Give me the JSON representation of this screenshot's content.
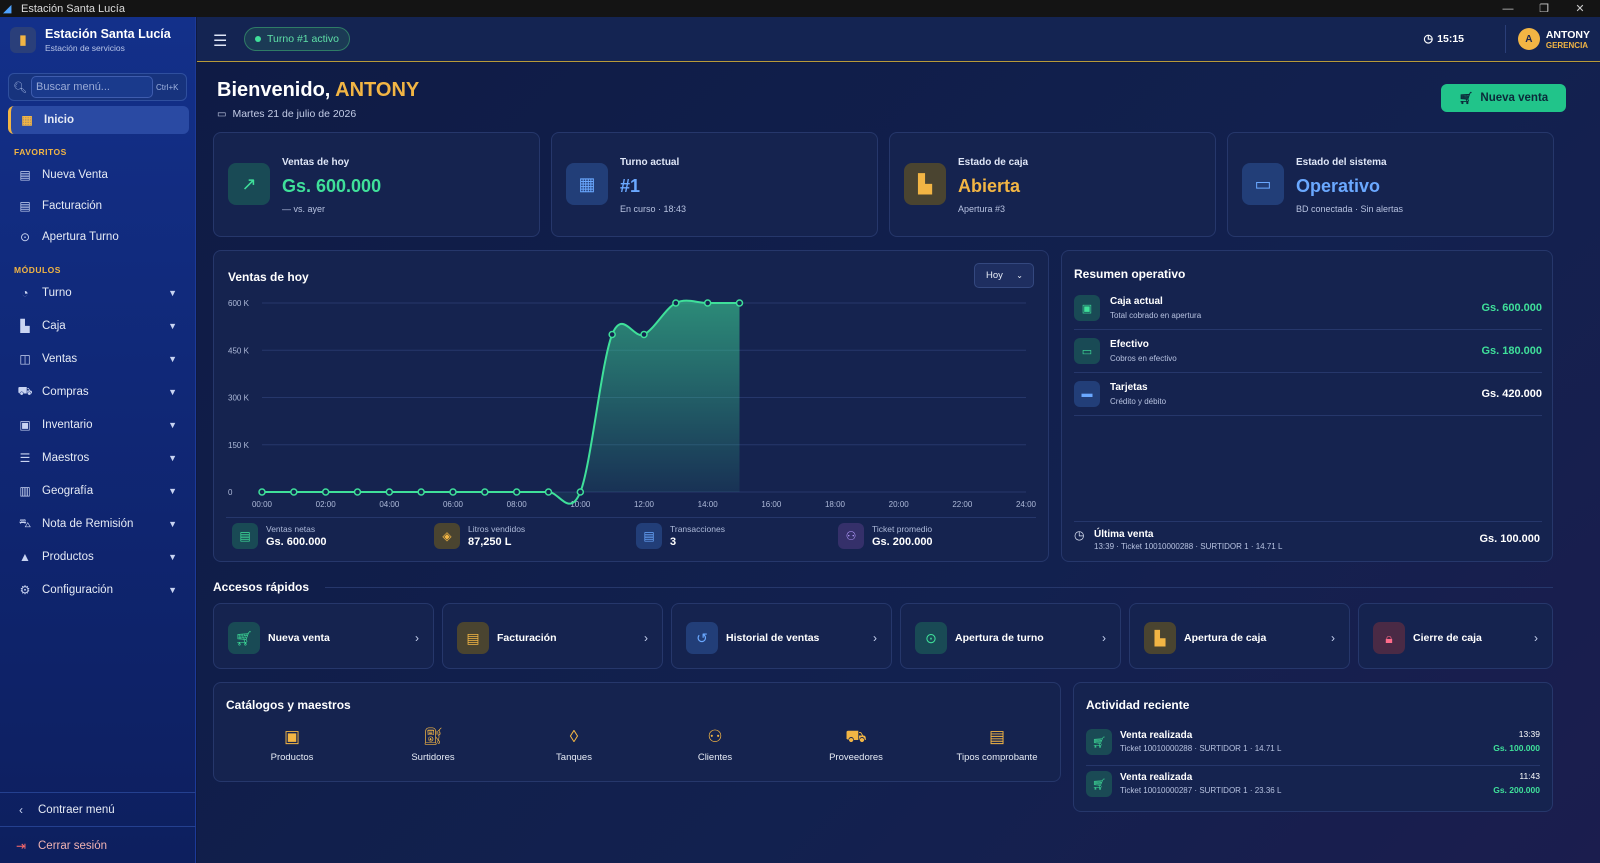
{
  "window": {
    "title": "Estación Santa Lucía"
  },
  "sidebar": {
    "brand_title": "Estación Santa Lucía",
    "brand_subtitle": "Estación de servicios",
    "search_placeholder": "Buscar menú...",
    "search_shortcut": "Ctrl+K",
    "home": "Inicio",
    "favorites_label": "FAVORITOS",
    "favorites": [
      "Nueva Venta",
      "Facturación",
      "Apertura Turno"
    ],
    "modules_label": "MÓDULOS",
    "modules": [
      "Turno",
      "Caja",
      "Ventas",
      "Compras",
      "Inventario",
      "Maestros",
      "Geografía",
      "Nota de Remisión",
      "Productos",
      "Configuración"
    ],
    "collapse": "Contraer menú",
    "logout": "Cerrar sesión"
  },
  "topbar": {
    "shift_pill": "Turno #1 activo",
    "time": "15:15",
    "user_name": "ANTONY",
    "user_role": "GERENCIA",
    "avatar_letter": "A"
  },
  "header": {
    "welcome": "Bienvenido, ",
    "name": "ANTONY",
    "date": "Martes 21 de julio de 2026",
    "new_sale_button": "Nueva venta"
  },
  "kpis": [
    {
      "label": "Ventas de hoy",
      "value": "Gs. 600.000",
      "sub": "— vs. ayer",
      "color": "#3fe09a"
    },
    {
      "label": "Turno actual",
      "value": "#1",
      "sub": "En curso · 18:43",
      "color": "#6aa8ff"
    },
    {
      "label": "Estado de caja",
      "value": "Abierta",
      "sub": "Apertura #3",
      "color": "#f2b544"
    },
    {
      "label": "Estado del sistema",
      "value": "Operativo",
      "sub": "BD conectada · Sin alertas",
      "color": "#6aa8ff"
    }
  ],
  "sales_chart": {
    "title": "Ventas de hoy",
    "period": "Hoy",
    "stats": [
      {
        "label": "Ventas netas",
        "value": "Gs. 600.000"
      },
      {
        "label": "Litros vendidos",
        "value": "87,250 L"
      },
      {
        "label": "Transacciones",
        "value": "3"
      },
      {
        "label": "Ticket promedio",
        "value": "Gs. 200.000"
      }
    ]
  },
  "chart_data": {
    "type": "area",
    "title": "Ventas de hoy",
    "x_ticks": [
      "00:00",
      "02:00",
      "04:00",
      "06:00",
      "08:00",
      "10:00",
      "12:00",
      "14:00",
      "16:00",
      "18:00",
      "20:00",
      "22:00",
      "24:00"
    ],
    "y_ticks": [
      "0",
      "150 K",
      "300 K",
      "450 K",
      "600 K"
    ],
    "ylim": [
      0,
      600000
    ],
    "xlim": [
      0,
      24
    ],
    "x": [
      0,
      1,
      2,
      3,
      4,
      5,
      6,
      7,
      8,
      9,
      10,
      11,
      12,
      13,
      14,
      15
    ],
    "values": [
      0,
      0,
      0,
      0,
      0,
      0,
      0,
      0,
      0,
      0,
      0,
      500000,
      500000,
      600000,
      600000,
      600000
    ],
    "color": "#3fe09a",
    "grid": true
  },
  "summary": {
    "title": "Resumen operativo",
    "rows": [
      {
        "title": "Caja actual",
        "sub": "Total cobrado en apertura",
        "value": "Gs. 600.000"
      },
      {
        "title": "Efectivo",
        "sub": "Cobros en efectivo",
        "value": "Gs. 180.000"
      },
      {
        "title": "Tarjetas",
        "sub": "Crédito y débito",
        "value": "Gs. 420.000"
      }
    ],
    "last_sale_title": "Última venta",
    "last_sale_detail": "13:39 · Ticket 10010000288 · SURTIDOR 1 · 14.71 L",
    "last_sale_value": "Gs. 100.000"
  },
  "quick_access": {
    "title": "Accesos rápidos",
    "items": [
      "Nueva venta",
      "Facturación",
      "Historial de ventas",
      "Apertura de turno",
      "Apertura de caja",
      "Cierre de caja"
    ]
  },
  "catalogs": {
    "title": "Catálogos y maestros",
    "items": [
      "Productos",
      "Surtidores",
      "Tanques",
      "Clientes",
      "Proveedores",
      "Tipos comprobante"
    ]
  },
  "activity": {
    "title": "Actividad reciente",
    "items": [
      {
        "title": "Venta realizada",
        "sub": "Ticket 10010000288 · SURTIDOR 1 · 14.71 L",
        "time": "13:39",
        "value": "Gs. 100.000"
      },
      {
        "title": "Venta realizada",
        "sub": "Ticket 10010000287 · SURTIDOR 1 · 23.36 L",
        "time": "11:43",
        "value": "Gs. 200.000"
      }
    ]
  }
}
